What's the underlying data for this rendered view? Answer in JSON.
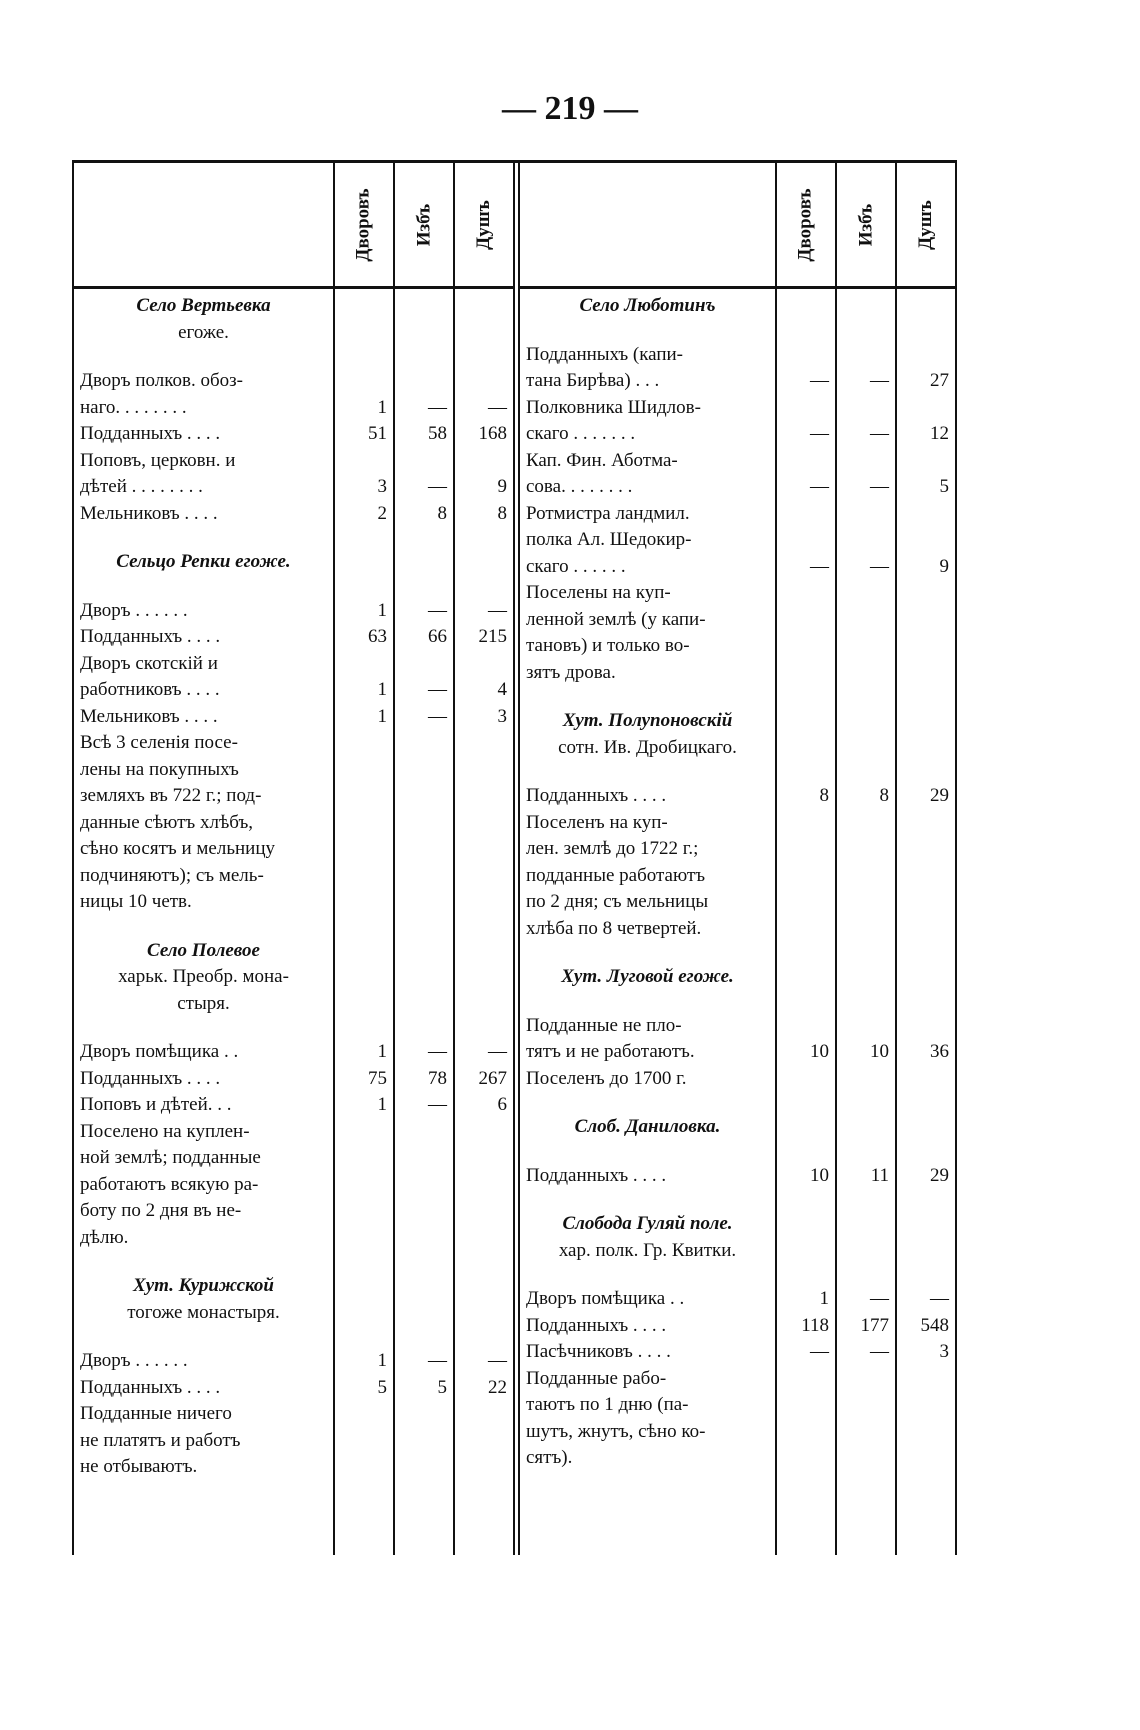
{
  "page_number": "— 219 —",
  "columns": [
    "Дворовъ",
    "Избъ",
    "Душъ"
  ],
  "left": [
    {
      "heading": [
        "Село Вертьевка",
        "егоже."
      ],
      "rows": [
        {
          "text": "Дворъ полков. обоз-"
        },
        {
          "text": "наго. . . . . . . .",
          "values": [
            "1",
            "—",
            "—"
          ]
        },
        {
          "text": "Подданныхъ . . . .",
          "values": [
            "51",
            "58",
            "168"
          ]
        },
        {
          "text": "Поповъ, церковн. и"
        },
        {
          "text": "дѣтей . . . . . . . .",
          "values": [
            "3",
            "—",
            "9"
          ]
        },
        {
          "text": "Мельниковъ . . . .",
          "values": [
            "2",
            "8",
            "8"
          ]
        }
      ]
    },
    {
      "heading": [
        "Сельцо Репки егоже."
      ],
      "rows": [
        {
          "text": "Дворъ . . . . . .",
          "values": [
            "1",
            "—",
            "—"
          ]
        },
        {
          "text": "Подданныхъ . . . .",
          "values": [
            "63",
            "66",
            "215"
          ]
        },
        {
          "text": "Дворъ скотскій и"
        },
        {
          "text": "работниковъ . . . .",
          "values": [
            "1",
            "—",
            "4"
          ]
        },
        {
          "text": "Мельниковъ . . . .",
          "values": [
            "1",
            "—",
            "3"
          ]
        },
        {
          "text": "Всѣ 3 селенія посе-"
        },
        {
          "text": "лены на покупныхъ"
        },
        {
          "text": "земляхъ въ 722 г.; под-"
        },
        {
          "text": "данные сѣютъ хлѣбъ,"
        },
        {
          "text": "сѣно косятъ и мельницу"
        },
        {
          "text": "подчиняютъ); съ мель-"
        },
        {
          "text": "ницы 10 четв."
        }
      ]
    },
    {
      "heading": [
        "Село Полевое",
        "харьк. Преобр. мона-",
        "стыря."
      ],
      "rows": [
        {
          "text": "Дворъ помѣщика . .",
          "values": [
            "1",
            "—",
            "—"
          ]
        },
        {
          "text": "Подданныхъ . . . .",
          "values": [
            "75",
            "78",
            "267"
          ]
        },
        {
          "text": "Поповъ и дѣтей. . .",
          "values": [
            "1",
            "—",
            "6"
          ]
        },
        {
          "text": "Поселено на куплен-"
        },
        {
          "text": "ной землѣ; подданные"
        },
        {
          "text": "работаютъ всякую ра-"
        },
        {
          "text": "боту по 2 дня въ не-"
        },
        {
          "text": "дѣлю."
        }
      ]
    },
    {
      "heading": [
        "Хут. Курижской",
        "тогоже монастыря."
      ],
      "rows": [
        {
          "text": "Дворъ . . . . . .",
          "values": [
            "1",
            "—",
            "—"
          ]
        },
        {
          "text": "Подданныхъ . . . .",
          "values": [
            "5",
            "5",
            "22"
          ]
        },
        {
          "text": "Подданные ничего"
        },
        {
          "text": "не платятъ и работъ"
        },
        {
          "text": "не отбываютъ."
        }
      ]
    }
  ],
  "right": [
    {
      "heading": [
        "Село Люботинъ"
      ],
      "rows": [
        {
          "text": "Подданныхъ (капи-"
        },
        {
          "text": "тана Бирѣва) . . .",
          "values": [
            "—",
            "—",
            "27"
          ]
        },
        {
          "text": "Полковника Шидлов-"
        },
        {
          "text": "скаго . . . . . . .",
          "values": [
            "—",
            "—",
            "12"
          ]
        },
        {
          "text": "Кап. Фин. Аботма-"
        },
        {
          "text": "сова. . . . . . . .",
          "values": [
            "—",
            "—",
            "5"
          ]
        },
        {
          "text": "Ротмистра ландмил."
        },
        {
          "text": "полка Ал. Шедокир-"
        },
        {
          "text": "скаго . . . . . .",
          "values": [
            "—",
            "—",
            "9"
          ]
        },
        {
          "text": "Поселены на куп-"
        },
        {
          "text": "ленной землѣ (у капи-"
        },
        {
          "text": "тановъ) и только во-"
        },
        {
          "text": "зятъ дрова."
        }
      ]
    },
    {
      "heading": [
        "Хут. Полупоновскій",
        "сотн. Ив. Дробицкаго."
      ],
      "rows": [
        {
          "text": "Подданныхъ . . . .",
          "values": [
            "8",
            "8",
            "29"
          ]
        },
        {
          "text": "Поселенъ на куп-"
        },
        {
          "text": "лен. землѣ до 1722 г.;"
        },
        {
          "text": "подданные работаютъ"
        },
        {
          "text": "по 2 дня; съ мельницы"
        },
        {
          "text": "хлѣба по 8 четвертей."
        }
      ]
    },
    {
      "heading": [
        "Хут. Луговой егоже."
      ],
      "rows": [
        {
          "text": "Подданные не пло-"
        },
        {
          "text": "тятъ и не работаютъ.",
          "values": [
            "10",
            "10",
            "36"
          ]
        },
        {
          "text": "Поселенъ до 1700 г."
        }
      ]
    },
    {
      "heading": [
        "Слоб. Даниловка."
      ],
      "rows": [
        {
          "text": "Подданныхъ . . . .",
          "values": [
            "10",
            "11",
            "29"
          ]
        }
      ]
    },
    {
      "heading": [
        "Слобода Гуляй поле.",
        "хар. полк. Гр. Квитки."
      ],
      "rows": [
        {
          "text": "Дворъ помѣщика . .",
          "values": [
            "1",
            "—",
            "—"
          ]
        },
        {
          "text": "Подданныхъ . . . .",
          "values": [
            "118",
            "177",
            "548"
          ]
        },
        {
          "text": "Пасѣчниковъ . . . .",
          "values": [
            "—",
            "—",
            "3"
          ]
        },
        {
          "text": "Подданные рабо-"
        },
        {
          "text": "таютъ по 1 дню (па-"
        },
        {
          "text": "шутъ, жнутъ, сѣно ко-"
        },
        {
          "text": "сятъ)."
        }
      ]
    }
  ]
}
